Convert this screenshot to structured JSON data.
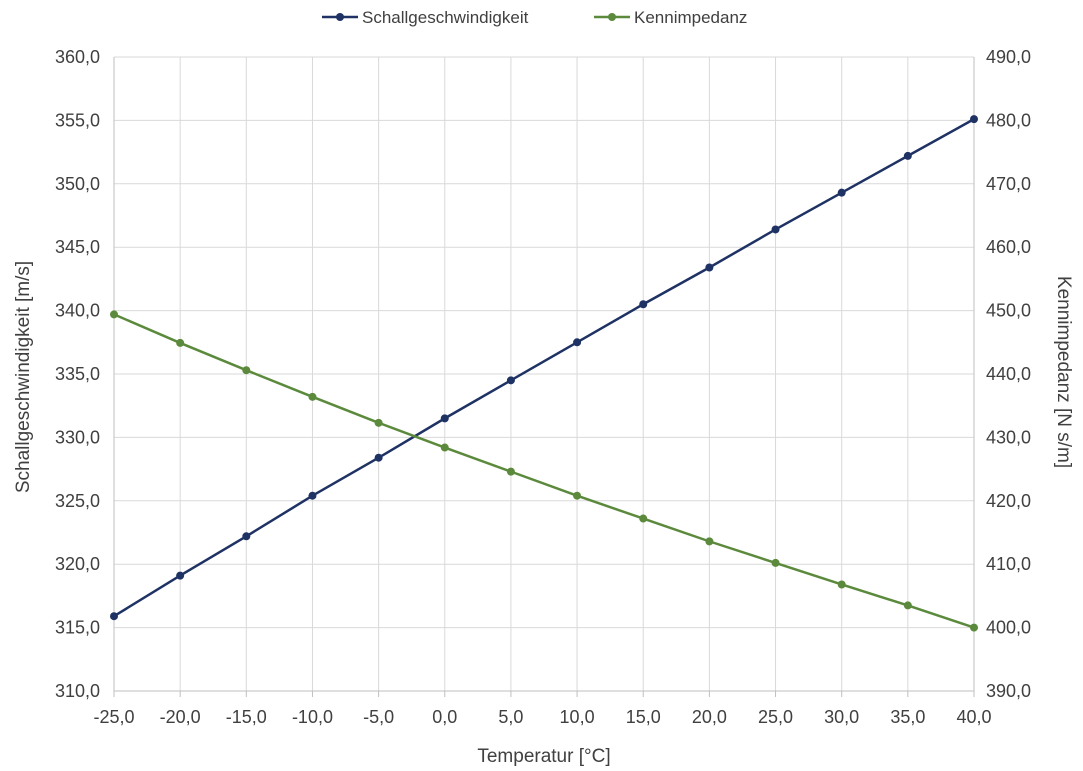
{
  "chart_data": {
    "type": "line",
    "xlabel": "Temperatur  [°C]",
    "ylabel": "Schallgeschwindigkeit  [m/s]",
    "y2label": "Kennimpedanz  [N s/m]",
    "x": [
      -25,
      -20,
      -15,
      -10,
      -5,
      0,
      5,
      10,
      15,
      20,
      25,
      30,
      35,
      40
    ],
    "x_tick_labels": [
      "-25,0",
      "-20,0",
      "-15,0",
      "-10,0",
      "-5,0",
      "0,0",
      "5,0",
      "10,0",
      "15,0",
      "20,0",
      "25,0",
      "30,0",
      "35,0",
      "40,0"
    ],
    "xlim": [
      -25,
      40
    ],
    "ylim": [
      310,
      360
    ],
    "y_tick_labels": [
      "310,0",
      "315,0",
      "320,0",
      "325,0",
      "330,0",
      "335,0",
      "340,0",
      "345,0",
      "350,0",
      "355,0",
      "360,0"
    ],
    "y2lim": [
      390,
      490
    ],
    "y2_tick_labels": [
      "390,0",
      "400,0",
      "410,0",
      "420,0",
      "430,0",
      "440,0",
      "450,0",
      "460,0",
      "470,0",
      "480,0",
      "490,0"
    ],
    "grid": true,
    "legend_position": "top",
    "series": [
      {
        "name": "Schallgeschwindigkeit",
        "axis": "left",
        "color": "#1f3264",
        "values": [
          315.9,
          319.1,
          322.2,
          325.4,
          328.4,
          331.5,
          334.5,
          337.5,
          340.5,
          343.4,
          346.4,
          349.3,
          352.2,
          355.1
        ]
      },
      {
        "name": "Kennimpedanz",
        "axis": "right",
        "color": "#5b8a3c",
        "values": [
          449.4,
          444.9,
          440.6,
          436.4,
          432.3,
          428.4,
          424.6,
          420.8,
          417.2,
          413.6,
          410.2,
          406.8,
          403.5,
          400.0
        ]
      }
    ]
  }
}
